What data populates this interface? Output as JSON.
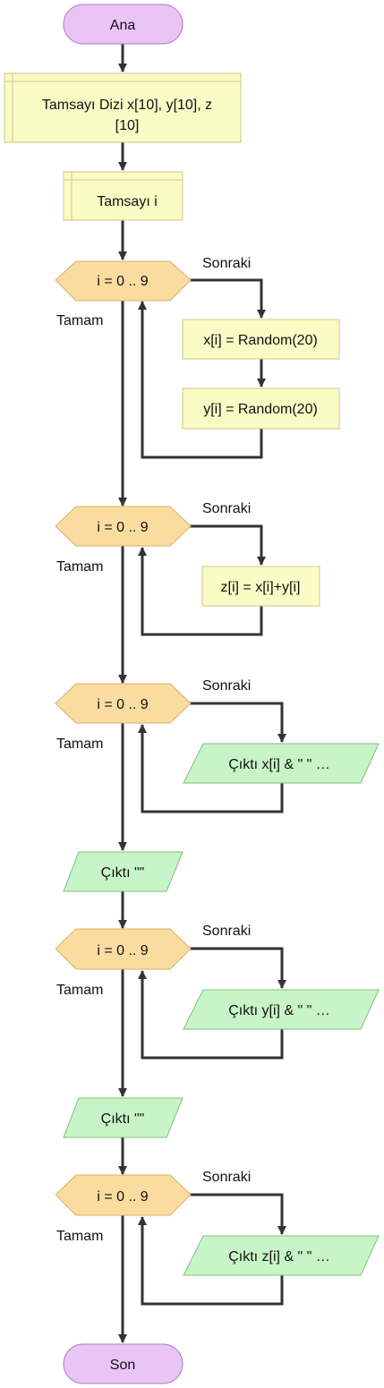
{
  "nodes": {
    "start": "Ana",
    "declare_arrays_line1": "Tamsayı Dizi x[10], y[10], z",
    "declare_arrays_line2": "[10]",
    "declare_i": "Tamsayı i",
    "loop1": "i = 0 .. 9",
    "assign_x": "x[i] = Random(20)",
    "assign_y": "y[i] = Random(20)",
    "loop2": "i = 0 .. 9",
    "assign_z": "z[i] = x[i]+y[i]",
    "loop3": "i = 0 .. 9",
    "output_x": "Çıktı x[i] & \" \" …",
    "output_blank1": "Çıktı \"\"",
    "loop4": "i = 0 .. 9",
    "output_y": "Çıktı y[i] & \" \" …",
    "output_blank2": "Çıktı \"\"",
    "loop5": "i = 0 .. 9",
    "output_z": "Çıktı z[i] & \" \" …",
    "end": "Son"
  },
  "edge_labels": {
    "next": "Sonraki",
    "done": "Tamam"
  },
  "colors": {
    "terminal_fill": "#e8c5f5",
    "terminal_stroke": "#b07cc6",
    "declare_fill": "#fbfbc6",
    "declare_stroke": "#c8c88a",
    "process_fill": "#fbfbc6",
    "process_stroke": "#c8c88a",
    "loop_fill": "#fbdca0",
    "loop_stroke": "#d8b06a",
    "io_fill": "#c8f5c8",
    "io_stroke": "#7fbf7f",
    "edge": "#333333"
  }
}
